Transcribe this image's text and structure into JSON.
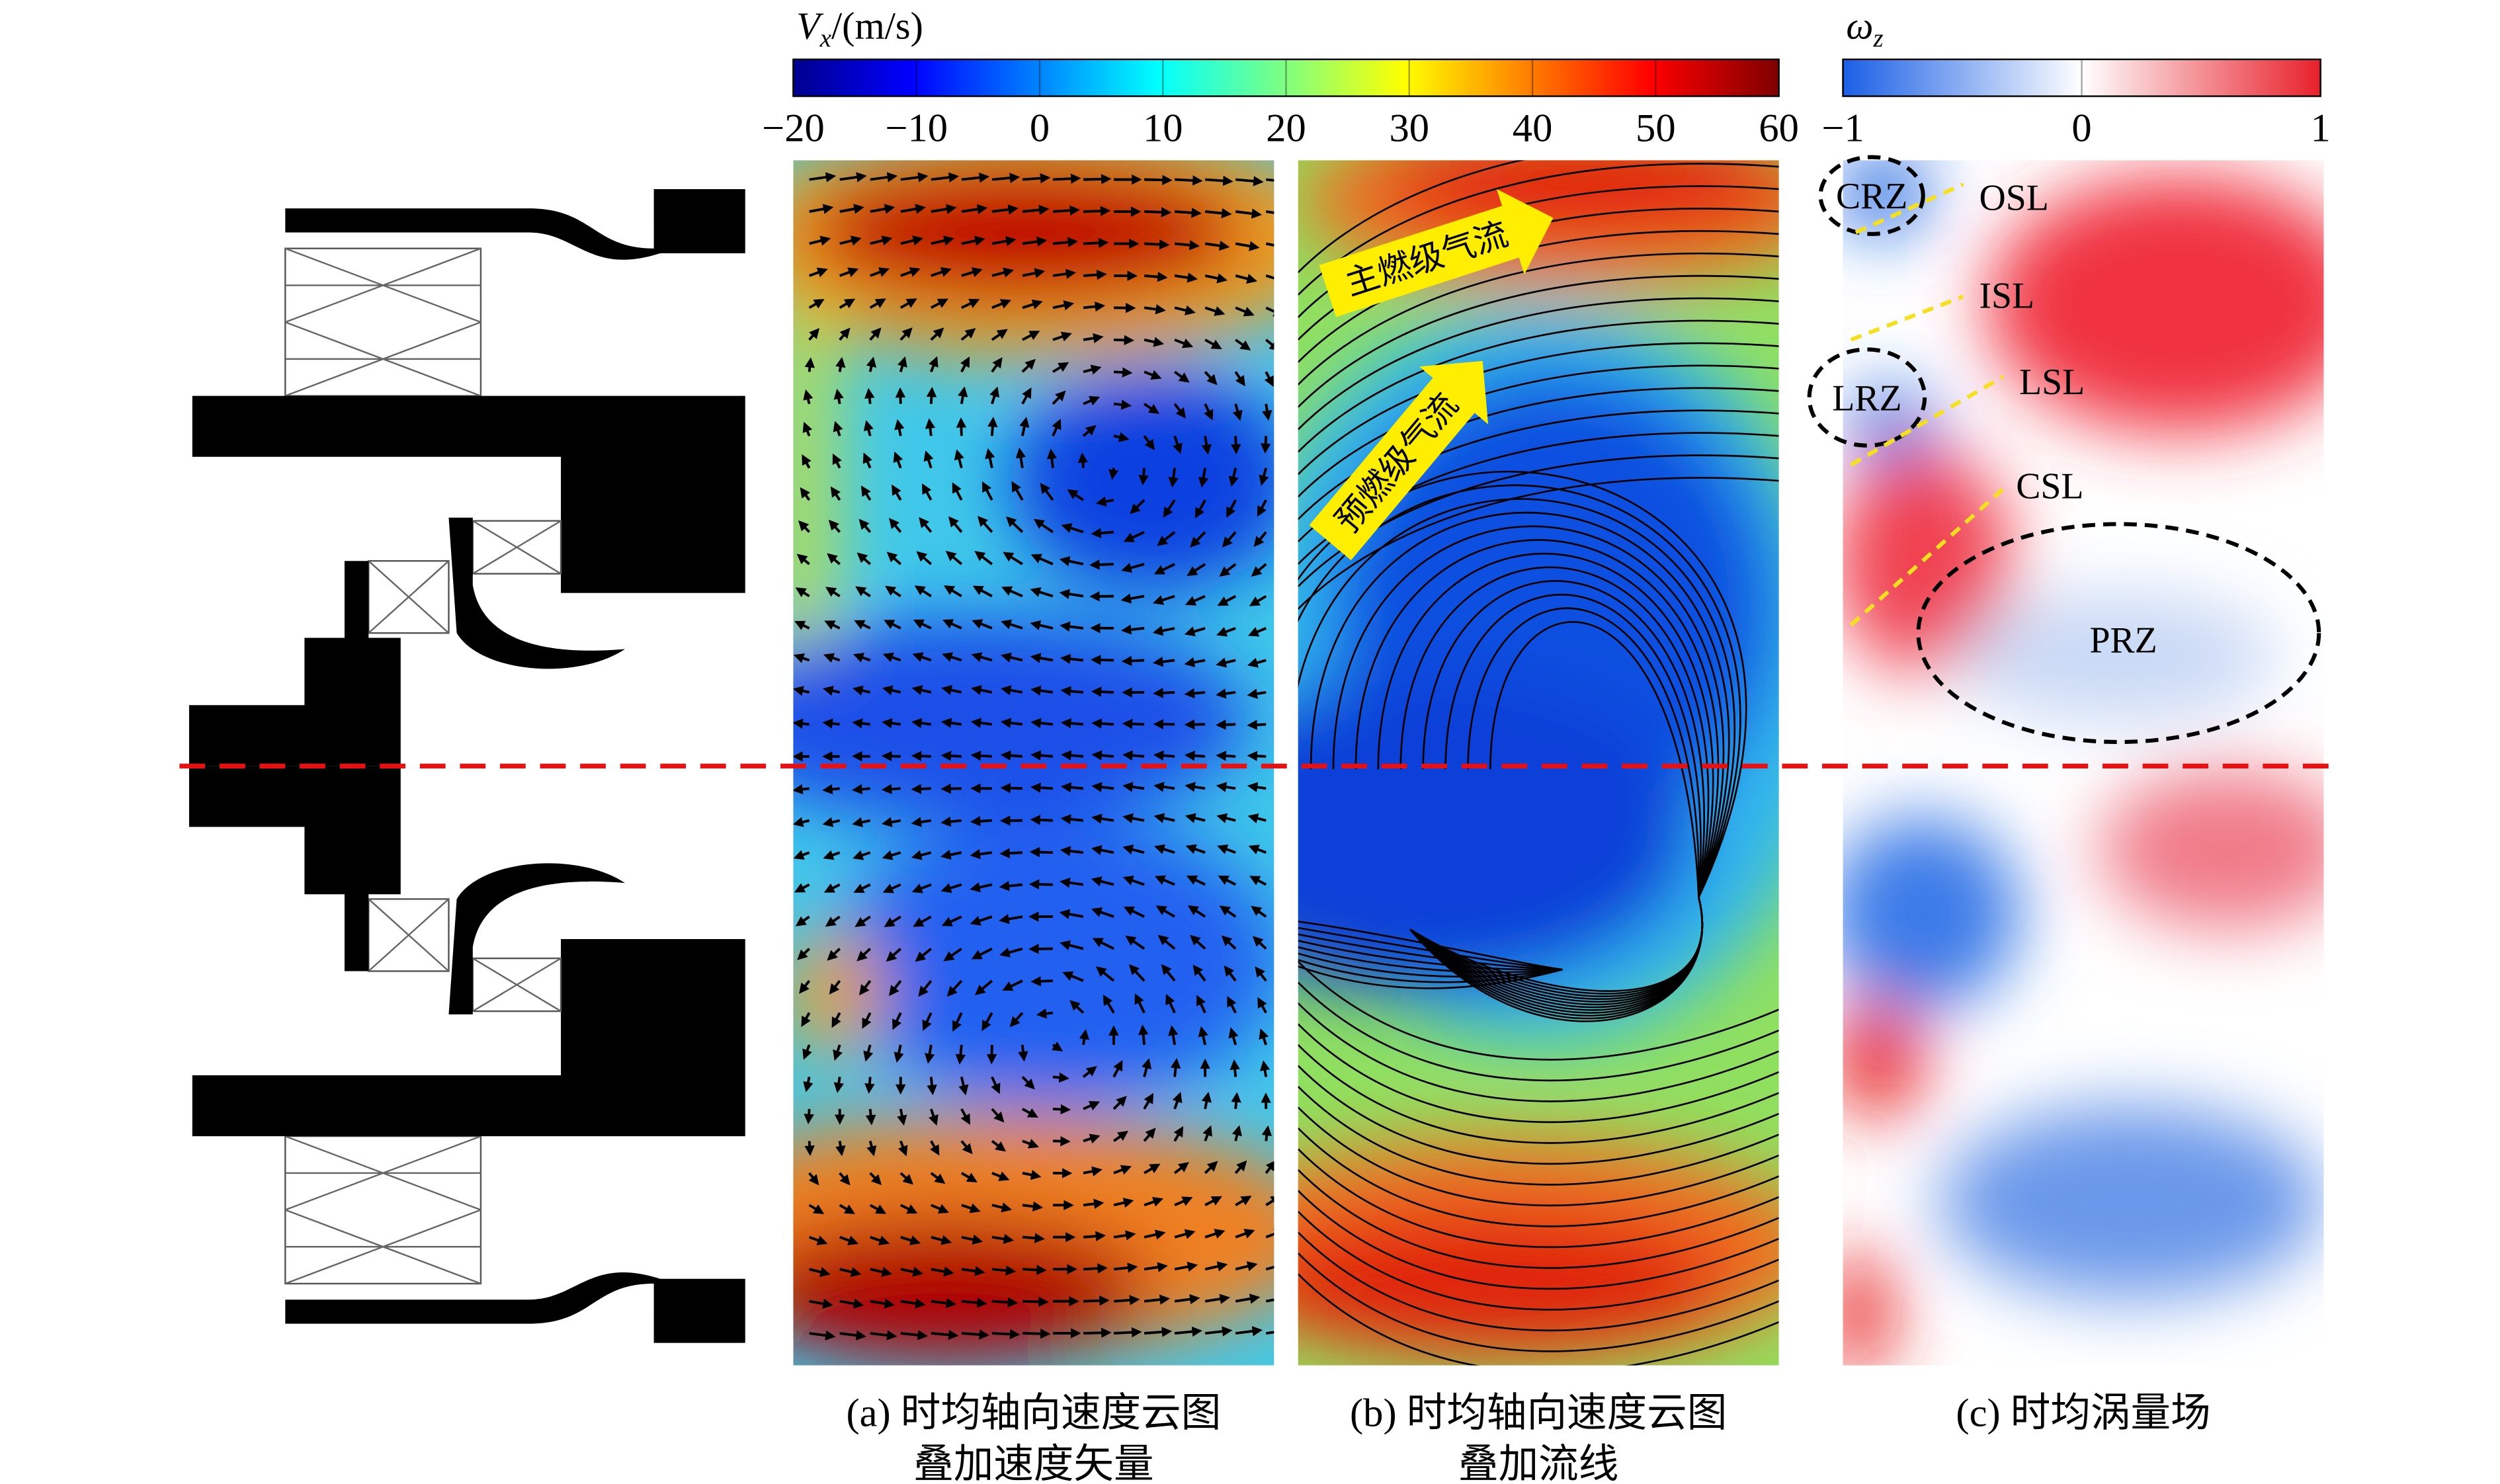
{
  "colorbars": [
    {
      "symbol": "V",
      "subscript": "x",
      "unit": "/(m/s)",
      "range": [
        -20,
        60
      ],
      "ticks": [
        {
          "value": -20,
          "label": "−20"
        },
        {
          "value": -10,
          "label": "−10"
        },
        0,
        10,
        20,
        30,
        40,
        50,
        60
      ]
    },
    {
      "symbol": "ω",
      "subscript": "z",
      "range": [
        -1,
        1
      ],
      "ticks": [
        {
          "value": -1,
          "label": "−1"
        },
        0,
        1
      ]
    }
  ],
  "panels": [
    {
      "caption": [
        "(a) 时均轴向速度云图",
        "叠加速度矢量"
      ]
    },
    {
      "caption": [
        "(b) 时均轴向速度云图",
        "叠加流线"
      ]
    },
    {
      "caption": [
        "(c) 时均涡量场"
      ]
    }
  ],
  "annotations": {
    "flows": [
      "主燃级气流",
      "预燃级气流"
    ],
    "regions": [
      "CRZ",
      "LRZ",
      "PRZ"
    ],
    "shear_layers": [
      "OSL",
      "ISL",
      "LSL",
      "CSL"
    ]
  }
}
